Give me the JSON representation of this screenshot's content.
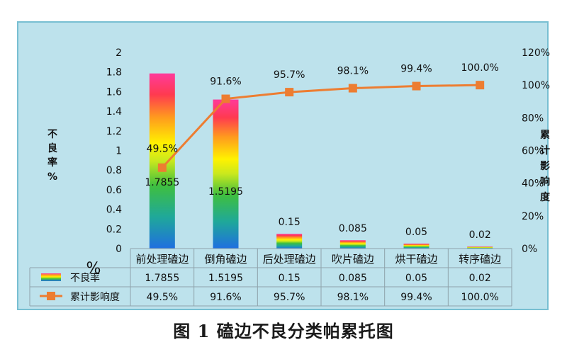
{
  "caption": "图 1 磕边不良分类帕累托图",
  "chart_data": {
    "type": "bar",
    "categories": [
      "前处理磕边",
      "倒角磕边",
      "后处理磕边",
      "吹片磕边",
      "烘干磕边",
      "转序磕边"
    ],
    "series": [
      {
        "name": "不良率",
        "type": "bar",
        "axis": "left",
        "values": [
          1.7855,
          1.5195,
          0.15,
          0.085,
          0.05,
          0.02
        ],
        "labels": [
          "1.7855",
          "1.5195",
          "0.15",
          "0.085",
          "0.05",
          "0.02"
        ],
        "fill": "rainbow-gradient"
      },
      {
        "name": "累计影响度",
        "type": "line",
        "axis": "right",
        "values": [
          49.5,
          91.6,
          95.7,
          98.1,
          99.4,
          100.0
        ],
        "labels": [
          "49.5%",
          "91.6%",
          "95.7%",
          "98.1%",
          "99.4%",
          "100.0%"
        ],
        "color": "#ed7d31"
      }
    ],
    "y_left": {
      "label": "不良率%",
      "ylim": [
        0,
        2
      ],
      "ticks": [
        "0",
        "0.2",
        "0.4",
        "0.6",
        "0.8",
        "1",
        "1.2",
        "1.4",
        "1.6",
        "1.8",
        "2"
      ]
    },
    "y_right": {
      "label": "累计影响度",
      "ylim": [
        0,
        120
      ],
      "ticks": [
        "0%",
        "20%",
        "40%",
        "60%",
        "80%",
        "100%",
        "120%"
      ]
    },
    "x_unit_label": "%",
    "data_table": true,
    "grid": false,
    "colors": {
      "background": "#bde2ec",
      "frame": "#78bfd2",
      "line": "#ed7d31"
    }
  }
}
